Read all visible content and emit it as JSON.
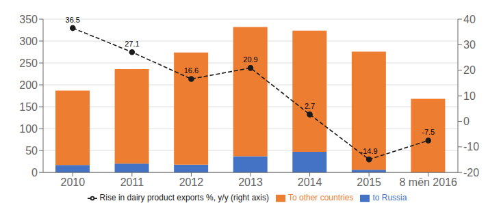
{
  "chart_data": {
    "type": "bar",
    "categories": [
      "2010",
      "2011",
      "2012",
      "2013",
      "2014",
      "2015",
      "8 mēn 2016"
    ],
    "series": [
      {
        "name": "to Russia",
        "color": "#4472C4",
        "type": "bar",
        "values": [
          17,
          20,
          18,
          37,
          47,
          6,
          0
        ]
      },
      {
        "name": "To other countries",
        "color": "#ED7D31",
        "type": "bar",
        "values": [
          170,
          216,
          256,
          295,
          277,
          270,
          168
        ]
      },
      {
        "name": "Rise in dairy product exports %, y/y (right axis)",
        "color": "#1a1a1a",
        "type": "line",
        "axis": "y2",
        "marker": "circle",
        "line_style": "dashed",
        "data_labels": true,
        "values": [
          36.5,
          27.1,
          16.6,
          20.9,
          2.7,
          -14.9,
          -7.5
        ]
      }
    ],
    "stacked": true,
    "ylim": [
      0,
      350
    ],
    "yticks": [
      0,
      50,
      100,
      150,
      200,
      250,
      300,
      350
    ],
    "y2lim": [
      -20,
      40
    ],
    "y2ticks": [
      -20,
      -10,
      0,
      10,
      20,
      30,
      40
    ],
    "grid": true,
    "legend": "bottom"
  }
}
